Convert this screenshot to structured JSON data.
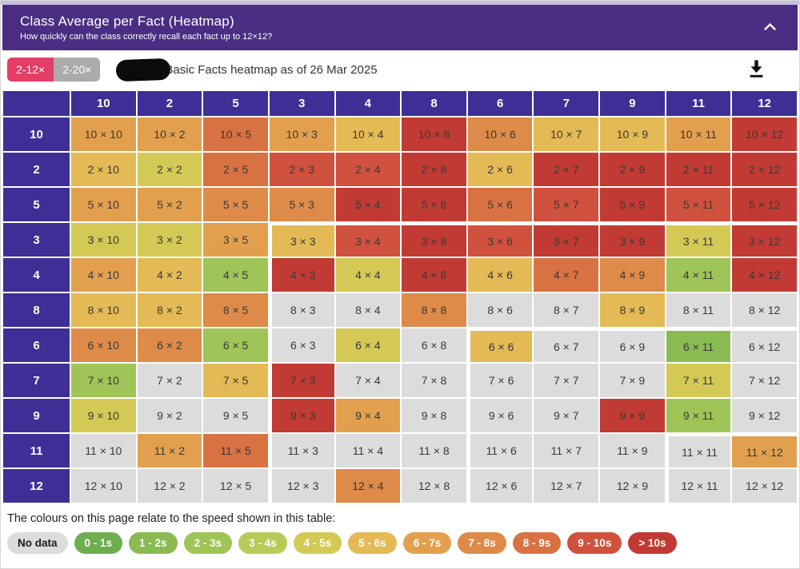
{
  "panel": {
    "title": "Class Average per Fact (Heatmap)",
    "subtitle": "How quickly can the class correctly recall each fact up to 12×12?",
    "header_color": "#4B2E83",
    "collapse_icon": "chevron-up-icon"
  },
  "toolbar": {
    "range_toggles": [
      {
        "label": "2-12×",
        "active": true,
        "color": "#E23E68"
      },
      {
        "label": "2-20×",
        "active": false,
        "color": "#ABABAB"
      }
    ],
    "redaction": "black-scribble-over-class-name",
    "caption": "Basic Facts heatmap as of 26 Mar 2025",
    "download_icon": "download-icon"
  },
  "heatmap": {
    "header_bg": "#3E2F96",
    "cell_separator": " × ",
    "region_boundary_indices": [
      3,
      6,
      9
    ]
  },
  "legend": {
    "note": "The colours on this page relate to the speed shown in this table:",
    "buckets": [
      {
        "label": "No data",
        "color": "#DCDCDC",
        "text": "#1A1A1A"
      },
      {
        "label": "0 - 1s",
        "color": "#6FAE4E",
        "text": "#FFFFFF"
      },
      {
        "label": "1 - 2s",
        "color": "#8ABB52",
        "text": "#FFFFFF"
      },
      {
        "label": "2 - 3s",
        "color": "#9FC457",
        "text": "#FFFFFF"
      },
      {
        "label": "3 - 4s",
        "color": "#B8CB58",
        "text": "#FFFFFF"
      },
      {
        "label": "4 - 5s",
        "color": "#D4C955",
        "text": "#FFFFFF"
      },
      {
        "label": "5 - 6s",
        "color": "#E3BA55",
        "text": "#FFFFFF"
      },
      {
        "label": "6 - 7s",
        "color": "#E2A04F",
        "text": "#FFFFFF"
      },
      {
        "label": "7 - 8s",
        "color": "#DE8B49",
        "text": "#FFFFFF"
      },
      {
        "label": "8 - 9s",
        "color": "#D97242",
        "text": "#FFFFFF"
      },
      {
        "label": "9 - 10s",
        "color": "#D0523E",
        "text": "#FFFFFF"
      },
      {
        "label": "> 10s",
        "color": "#C23A34",
        "text": "#FFFFFF"
      }
    ]
  },
  "chart_data": {
    "type": "heatmap",
    "title": "Class Average per Fact (Heatmap)",
    "subtitle": "How quickly can the class correctly recall each fact up to 12×12?",
    "columns": [
      "10",
      "2",
      "5",
      "3",
      "4",
      "8",
      "6",
      "7",
      "9",
      "11",
      "12"
    ],
    "rows": [
      "10",
      "2",
      "5",
      "3",
      "4",
      "8",
      "6",
      "7",
      "9",
      "11",
      "12"
    ],
    "value_meaning": "average recall speed bucket per multiplication fact",
    "buckets": [
      "No data",
      "0 - 1s",
      "1 - 2s",
      "2 - 3s",
      "3 - 4s",
      "4 - 5s",
      "5 - 6s",
      "6 - 7s",
      "7 - 8s",
      "8 - 9s",
      "9 - 10s",
      "> 10s"
    ],
    "matrix_bucket_index": [
      [
        7,
        7,
        9,
        7,
        6,
        11,
        8,
        6,
        6,
        7,
        11
      ],
      [
        6,
        5,
        9,
        10,
        10,
        11,
        6,
        11,
        11,
        11,
        11
      ],
      [
        7,
        7,
        8,
        8,
        11,
        11,
        9,
        10,
        11,
        10,
        11
      ],
      [
        5,
        5,
        7,
        6,
        10,
        11,
        10,
        11,
        11,
        5,
        11
      ],
      [
        7,
        6,
        3,
        11,
        5,
        11,
        6,
        9,
        8,
        3,
        11
      ],
      [
        6,
        6,
        8,
        0,
        0,
        8,
        0,
        0,
        6,
        0,
        0
      ],
      [
        8,
        8,
        3,
        0,
        5,
        0,
        6,
        0,
        0,
        2,
        0
      ],
      [
        3,
        0,
        6,
        11,
        0,
        0,
        0,
        0,
        0,
        5,
        0
      ],
      [
        5,
        0,
        0,
        11,
        7,
        0,
        0,
        0,
        11,
        3,
        0
      ],
      [
        0,
        7,
        9,
        0,
        0,
        0,
        0,
        0,
        0,
        0,
        7
      ],
      [
        0,
        0,
        0,
        0,
        8,
        0,
        0,
        0,
        0,
        0,
        0
      ]
    ],
    "highlight_region_starts": [
      "3×3",
      "6×6",
      "11×11"
    ],
    "legend_position": "bottom"
  }
}
